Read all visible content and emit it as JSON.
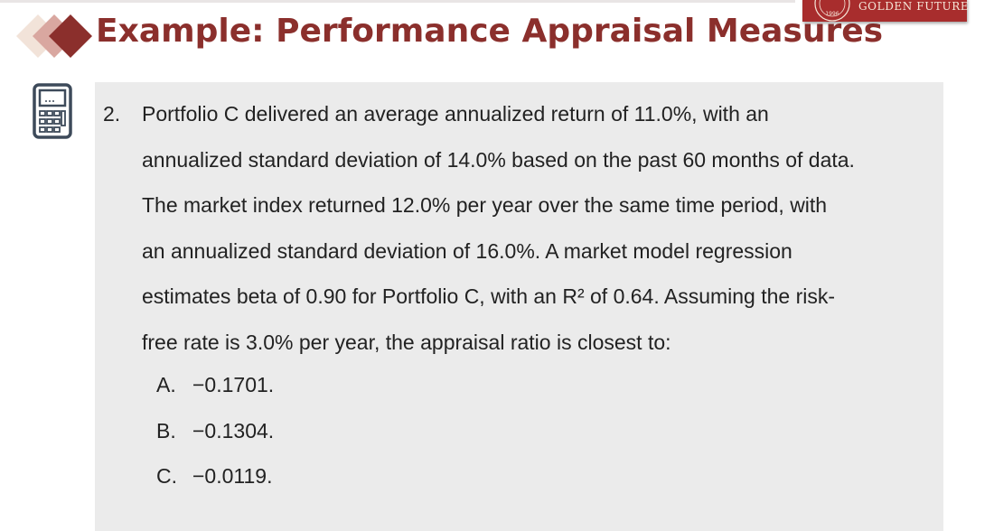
{
  "slide": {
    "title": "Example: Performance Appraisal Measures",
    "brand_text": "GOLDEN FUTURE",
    "brand_seal_text": "1996",
    "colors": {
      "title": "#8b2f2c",
      "brand_bg": "#a82d2d",
      "panel_bg": "#ebebeb",
      "icon": "#3d4a5a"
    }
  },
  "question": {
    "number": "2.",
    "lines": [
      "Portfolio C delivered an average annualized return of 11.0%, with an",
      "annualized standard deviation of 14.0% based on the past 60 months of data.",
      "The market index returned 12.0% per year over the same time period, with",
      "an annualized standard deviation of 16.0%. A market model regression",
      "estimates beta of 0.90 for Portfolio C, with an R² of 0.64. Assuming the risk-",
      "free rate is 3.0% per year, the appraisal ratio is closest to:"
    ],
    "options": [
      {
        "letter": "A.",
        "value": "−0.1701."
      },
      {
        "letter": "B.",
        "value": "−0.1304."
      },
      {
        "letter": "C.",
        "value": "−0.0119."
      }
    ]
  },
  "icons": {
    "bullet": "diamond-cluster-icon",
    "calculator": "calculator-icon",
    "seal": "seal-icon"
  }
}
